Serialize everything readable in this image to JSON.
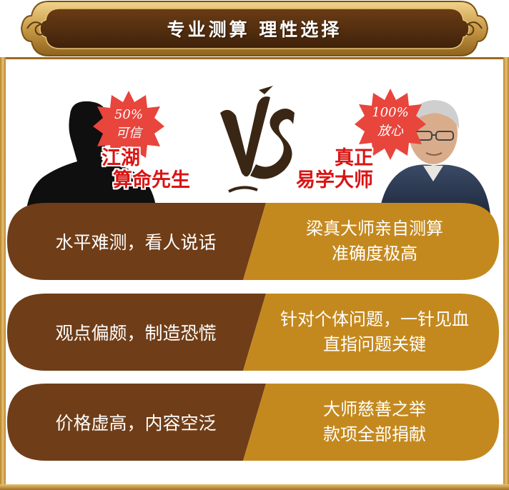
{
  "header": {
    "title": "专业测算 理性选择"
  },
  "left_profile": {
    "badge_line1": "50%",
    "badge_line2": "可信",
    "label_line1": "江湖",
    "label_line2": "算命先生"
  },
  "vs_text": "VS",
  "right_profile": {
    "badge_line1": "100%",
    "badge_line2": "放心",
    "label_line1": "真正",
    "label_line2": "易学大师"
  },
  "comparisons": [
    {
      "left": "水平难测，看人说话",
      "right_line1": "梁真大师亲自测算",
      "right_line2": "准确度极高"
    },
    {
      "left": "观点偏颇，制造恐慌",
      "right_line1": "针对个体问题，一针见血",
      "right_line2": "直指问题关键"
    },
    {
      "left": "价格虚高，内容空泛",
      "right_line1": "大师慈善之举",
      "right_line2": "款项全部捐献"
    }
  ],
  "colors": {
    "frame_gold": "#c89a47",
    "banner_brown": "#5a3312",
    "left_panel_brown": "#6f3d17",
    "right_panel_gold": "#c4891e",
    "badge_red": "#e8453c",
    "label_red": "#d91414"
  }
}
